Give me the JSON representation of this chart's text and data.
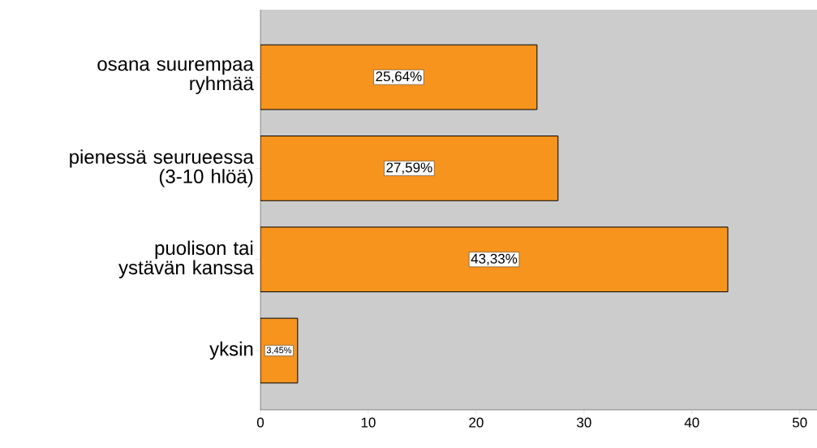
{
  "chart_data": {
    "type": "bar",
    "orientation": "horizontal",
    "categories": [
      "osana suurempaa ryhmää",
      "pienessä seurueessa (3-10 hlöä)",
      "puolison tai ystävän kanssa",
      "yksin"
    ],
    "values": [
      25.64,
      27.59,
      43.33,
      3.45
    ],
    "value_labels": [
      "25,64%",
      "27,59%",
      "43,33%",
      "3,45%"
    ],
    "color": "#f7941d",
    "xlim": [
      0,
      51.6
    ],
    "xticks": [
      0,
      10,
      20,
      30,
      40,
      50
    ],
    "grid": false
  }
}
